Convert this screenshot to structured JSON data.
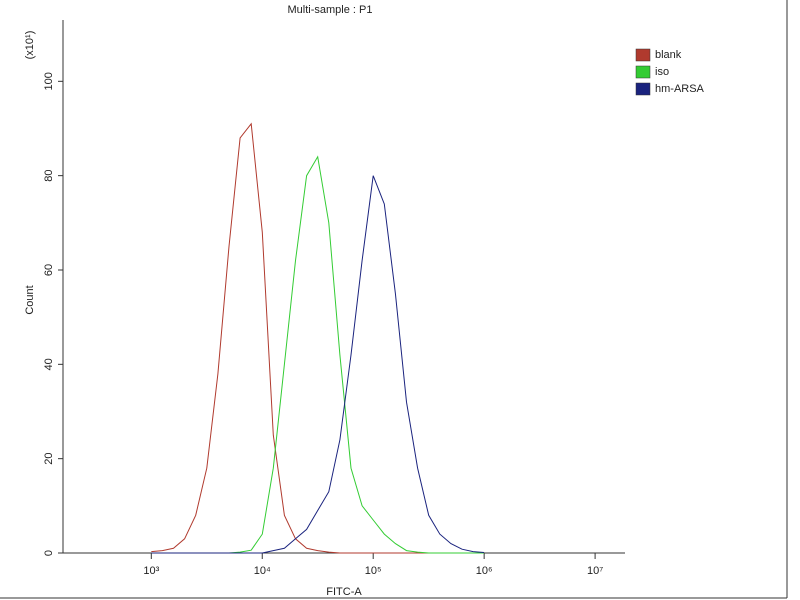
{
  "chart_data": {
    "type": "line",
    "title": "Multi-sample : P1",
    "xlabel": "FITC-A",
    "ylabel": "Count",
    "yscale_label": "(x10¹)",
    "xscale": "log",
    "legend": "upper right",
    "x": [
      1000,
      1259,
      1585,
      1995,
      2512,
      3162,
      3981,
      5012,
      6310,
      7943,
      10000,
      12589,
      15849,
      19953,
      25119,
      31623,
      39811,
      50119,
      63096,
      79433,
      100000,
      125893,
      158489,
      199526,
      251189,
      316228,
      398107,
      501187,
      630957,
      794328,
      1000000
    ],
    "series": [
      {
        "name": "blank",
        "color": "#b03a2e",
        "values": [
          0.3,
          0.5,
          1,
          3,
          8,
          18,
          38,
          65,
          88,
          91,
          68,
          25,
          8,
          3,
          1,
          0.5,
          0.2,
          0,
          0,
          0,
          0,
          0,
          0,
          0,
          0,
          0,
          0,
          0,
          0,
          0,
          0
        ]
      },
      {
        "name": "iso",
        "color": "#33cc33",
        "values": [
          0,
          0,
          0,
          0,
          0,
          0,
          0,
          0,
          0.2,
          0.6,
          4,
          18,
          40,
          62,
          80,
          84,
          70,
          42,
          18,
          10,
          7,
          4,
          2,
          0.5,
          0.2,
          0,
          0,
          0,
          0,
          0,
          0
        ]
      },
      {
        "name": "hm-ARSA",
        "color": "#1a237e",
        "values": [
          0,
          0,
          0,
          0,
          0,
          0,
          0,
          0,
          0,
          0,
          0,
          0.5,
          1,
          3,
          5,
          9,
          13,
          24,
          42,
          62,
          80,
          74,
          55,
          32,
          18,
          8,
          4,
          2,
          0.8,
          0.3,
          0.1
        ]
      }
    ],
    "xlim": [
      160,
      18600000
    ],
    "xticks": [
      {
        "value": 1000,
        "label": "10³"
      },
      {
        "value": 10000,
        "label": "10⁴"
      },
      {
        "value": 100000,
        "label": "10⁵"
      },
      {
        "value": 1000000,
        "label": "10⁶"
      },
      {
        "value": 10000000,
        "label": "10⁷"
      }
    ],
    "ylim": [
      0,
      113
    ],
    "yticks": [
      0,
      20,
      40,
      60,
      80,
      100
    ]
  }
}
